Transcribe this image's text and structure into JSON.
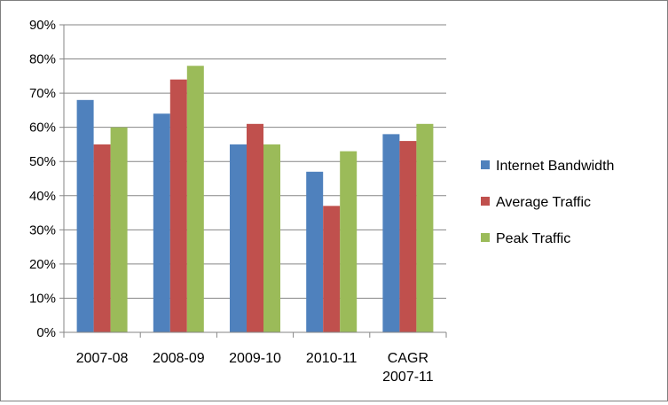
{
  "chart_data": {
    "type": "bar",
    "categories": [
      [
        "2007-08"
      ],
      [
        "2008-09"
      ],
      [
        "2009-10"
      ],
      [
        "2010-11"
      ],
      [
        "CAGR",
        "2007-11"
      ]
    ],
    "series": [
      {
        "name": "Internet Bandwidth",
        "color": "#4f81bd",
        "values": [
          68,
          64,
          55,
          47,
          58
        ]
      },
      {
        "name": "Average Traffic",
        "color": "#c0504d",
        "values": [
          55,
          74,
          61,
          37,
          56
        ]
      },
      {
        "name": "Peak Traffic",
        "color": "#9bbb59",
        "values": [
          60,
          78,
          55,
          53,
          61
        ]
      }
    ],
    "y_ticks": [
      "0%",
      "10%",
      "20%",
      "30%",
      "40%",
      "50%",
      "60%",
      "70%",
      "80%",
      "90%"
    ],
    "ylim": [
      0,
      90
    ],
    "y_unit": "%",
    "grid": true,
    "legend_position": "right",
    "title": "",
    "xlabel": "",
    "ylabel": ""
  }
}
